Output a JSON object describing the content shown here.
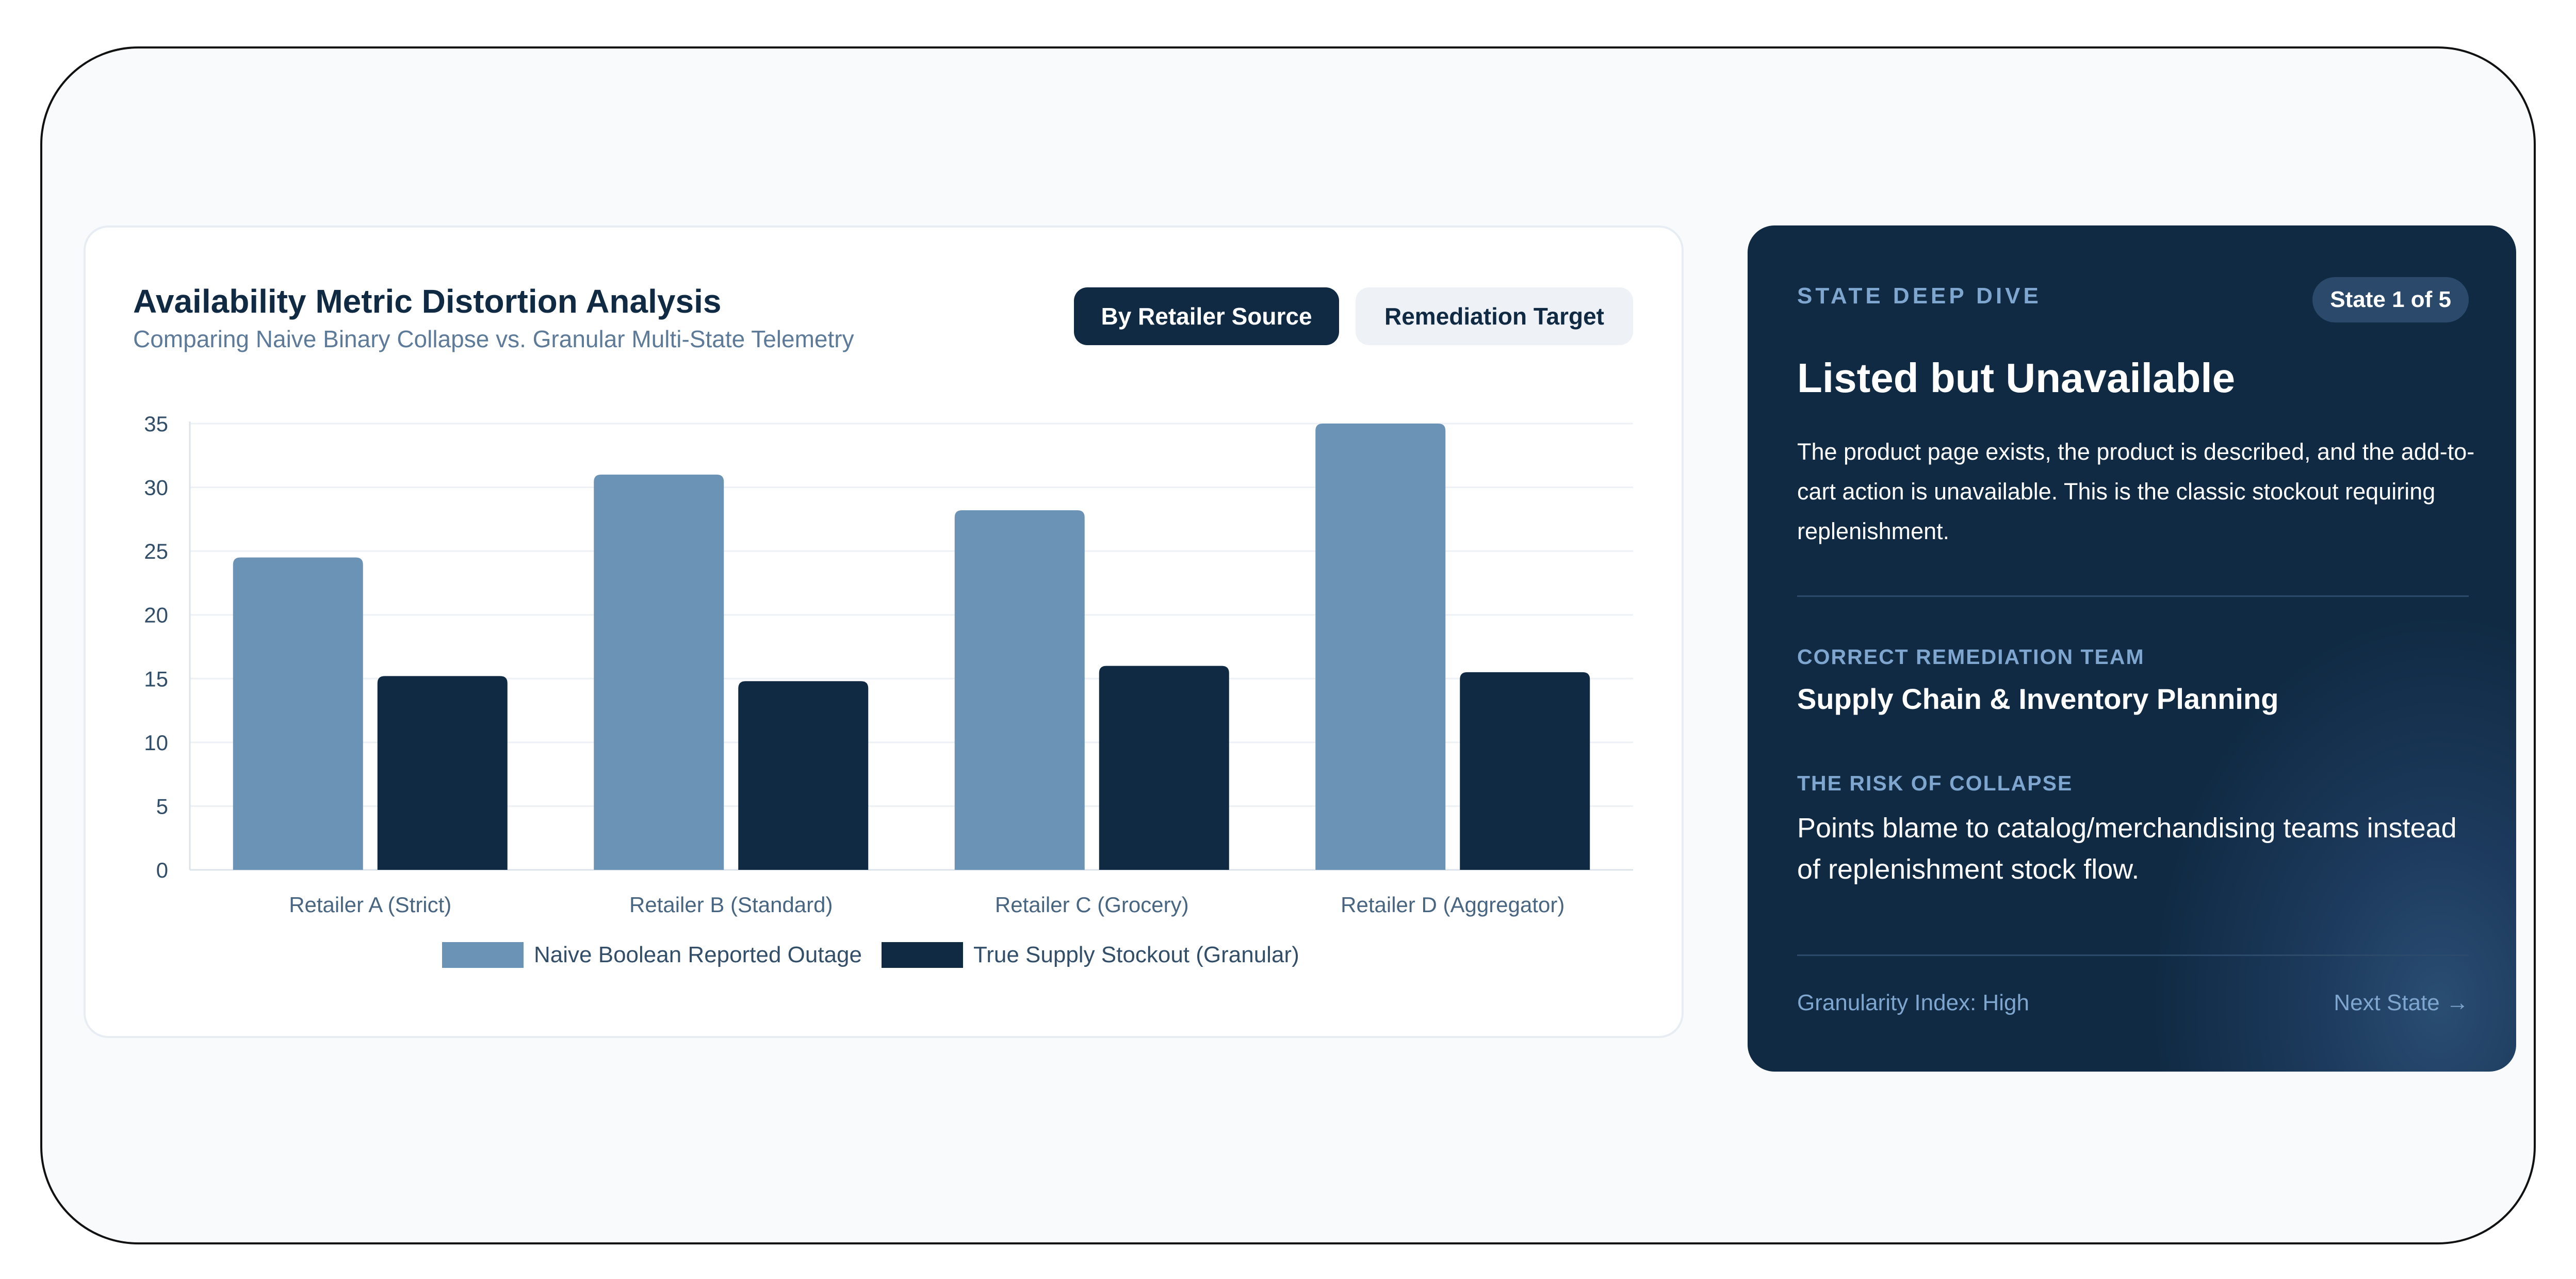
{
  "chart": {
    "title": "Availability Metric Distortion Analysis",
    "subtitle": "Comparing Naive Binary Collapse vs. Granular Multi-State Telemetry",
    "toggles": {
      "active_label": "By Retailer Source",
      "inactive_label": "Remediation Target"
    }
  },
  "chart_data": {
    "type": "bar",
    "title": "Availability Metric Distortion Analysis",
    "subtitle": "Comparing Naive Binary Collapse vs. Granular Multi-State Telemetry",
    "categories": [
      "Retailer A (Strict)",
      "Retailer B (Standard)",
      "Retailer C (Grocery)",
      "Retailer D (Aggregator)"
    ],
    "series": [
      {
        "name": "Naive Boolean Reported Outage",
        "values": [
          24.5,
          31,
          28.2,
          35
        ],
        "color": "#6b93b6"
      },
      {
        "name": "True Supply Stockout (Granular)",
        "values": [
          15.2,
          14.8,
          16,
          15.5
        ],
        "color": "#102a43"
      }
    ],
    "ylim": [
      0,
      35
    ],
    "yticks": [
      0,
      5,
      10,
      15,
      20,
      25,
      30,
      35
    ],
    "xlabel": "",
    "ylabel": "",
    "grid": true,
    "legend": "bottom"
  },
  "panel": {
    "eyebrow": "STATE DEEP DIVE",
    "badge": "State 1 of 5",
    "title": "Listed but Unavailable",
    "description": "The product page exists, the product is described, and the add-to-cart action is unavailable. This is the classic stockout requiring replenishment.",
    "team_label": "CORRECT REMEDIATION TEAM",
    "team_value": "Supply Chain & Inventory Planning",
    "risk_label": "THE RISK OF COLLAPSE",
    "risk_value": "Points blame to catalog/merchandising teams instead of replenishment stock flow.",
    "footer_left": "Granularity Index: High",
    "footer_right": "Next State →"
  }
}
